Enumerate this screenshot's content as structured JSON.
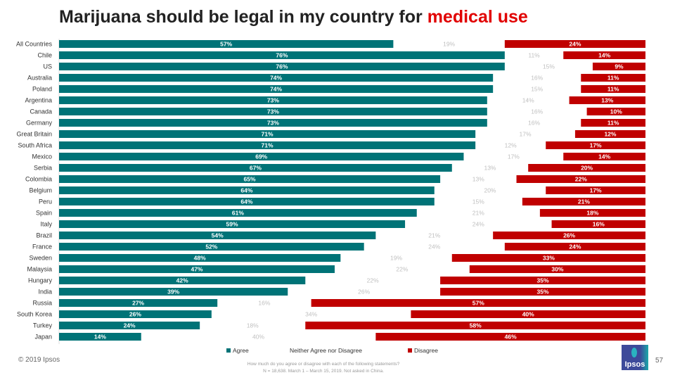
{
  "title_main": "Marijuana should be legal in my country for ",
  "title_highlight": "medical use",
  "footer": {
    "copyright": "© 2019 Ipsos",
    "question": "How much do you agree or disagree with each of the following statements?",
    "sample": "N = 18,638. March 1 – March 15, 2019. Not asked in China.",
    "page_number": "57",
    "logo_text": "Ipsos"
  },
  "colors": {
    "agree": "#007377",
    "neither_text": "#bfbfbf",
    "disagree": "#c00000",
    "highlight": "#e10000"
  },
  "chart_data": {
    "type": "bar",
    "orientation": "horizontal",
    "stacked": true,
    "categories": [
      "All Countries",
      "Chile",
      "US",
      "Australia",
      "Poland",
      "Argentina",
      "Canada",
      "Germany",
      "Great Britain",
      "South Africa",
      "Mexico",
      "Serbia",
      "Colombia",
      "Belgium",
      "Peru",
      "Spain",
      "Italy",
      "Brazil",
      "France",
      "Sweden",
      "Malaysia",
      "Hungary",
      "India",
      "Russia",
      "South Korea",
      "Turkey",
      "Japan"
    ],
    "series": [
      {
        "name": "Agree",
        "values": [
          57,
          76,
          76,
          74,
          74,
          73,
          73,
          73,
          71,
          71,
          69,
          67,
          65,
          64,
          64,
          61,
          59,
          54,
          52,
          48,
          47,
          42,
          39,
          27,
          26,
          24,
          14
        ]
      },
      {
        "name": "Neither Agree nor Disagree",
        "values": [
          19,
          11,
          15,
          16,
          15,
          14,
          16,
          16,
          17,
          12,
          17,
          13,
          13,
          20,
          15,
          21,
          24,
          21,
          24,
          19,
          22,
          22,
          26,
          16,
          34,
          18,
          40
        ]
      },
      {
        "name": "Disagree",
        "values": [
          24,
          14,
          9,
          11,
          11,
          13,
          10,
          11,
          12,
          17,
          14,
          20,
          22,
          17,
          21,
          18,
          16,
          26,
          24,
          33,
          30,
          35,
          35,
          57,
          40,
          58,
          46
        ]
      }
    ],
    "value_suffix": "%",
    "xlim": [
      0,
      100
    ],
    "legend": "bottom"
  }
}
